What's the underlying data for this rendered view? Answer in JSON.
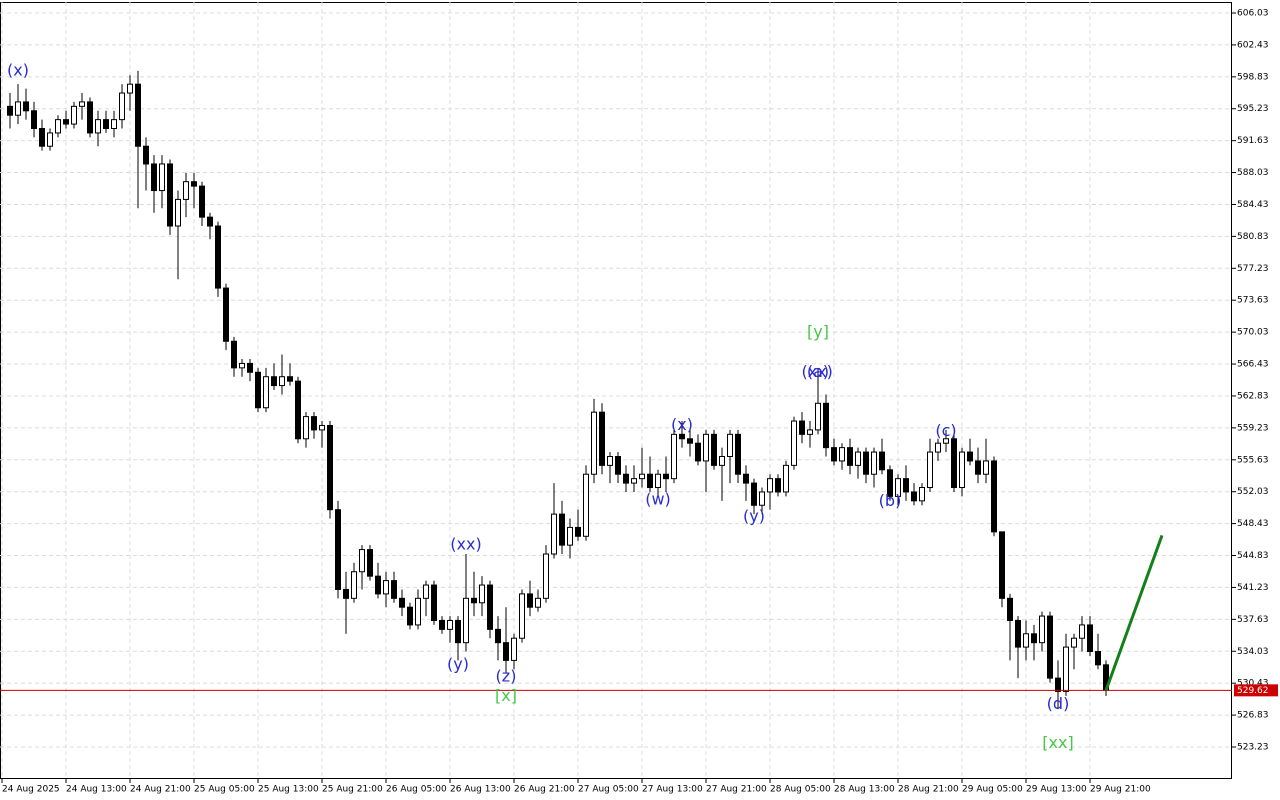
{
  "chart_data": {
    "type": "candlestick",
    "x": [
      1,
      2,
      3,
      4,
      5,
      6,
      7,
      8,
      9,
      10,
      11,
      12,
      13,
      14,
      15,
      16,
      17,
      18,
      19,
      20,
      21,
      22,
      23,
      24,
      25,
      26,
      27,
      28,
      29,
      30,
      31,
      32,
      33,
      34,
      35,
      36,
      37,
      38,
      39,
      40,
      41,
      42,
      43,
      44,
      45,
      46,
      47,
      48,
      49,
      50,
      51,
      52,
      53,
      54,
      55,
      56,
      57,
      58,
      59,
      60,
      61,
      62,
      63,
      64,
      65,
      66,
      67,
      68,
      69,
      70,
      71,
      72,
      73,
      74,
      75,
      76,
      77,
      78,
      79,
      80,
      81,
      82,
      83,
      84,
      85,
      86,
      87,
      88,
      89,
      90,
      91,
      92,
      93,
      94,
      95,
      96,
      97,
      98,
      99,
      100,
      101,
      102,
      103,
      104,
      105,
      106,
      107,
      108,
      109,
      110,
      111,
      112,
      113,
      114,
      115,
      116,
      117,
      118,
      119,
      120,
      121,
      122,
      123,
      124,
      125,
      126,
      127,
      128,
      129,
      130,
      131,
      132,
      133,
      134,
      135,
      136,
      137,
      138
    ],
    "open": [
      595.5,
      594.5,
      596,
      595,
      593,
      591,
      592.5,
      594,
      593.5,
      595.5,
      596,
      592.5,
      594,
      593,
      594,
      597,
      598,
      591,
      589,
      586,
      589,
      582,
      585,
      587,
      586.5,
      583,
      582,
      575,
      569,
      566,
      566.5,
      565.5,
      561.5,
      565,
      564,
      565,
      564.5,
      558,
      560.5,
      559,
      559.5,
      550,
      541,
      540,
      543,
      545.5,
      542.5,
      540.5,
      542,
      540,
      539,
      537,
      540,
      541.5,
      537.5,
      536.5,
      537.5,
      535,
      540,
      539.5,
      541.5,
      536.5,
      535,
      533,
      535.5,
      540.5,
      539,
      540,
      545,
      549.5,
      546,
      548,
      547,
      554,
      561,
      555,
      556,
      554,
      553,
      553.5,
      554,
      552.5,
      554,
      553.5,
      558.5,
      558,
      557.5,
      555.5,
      558.5,
      555,
      556,
      558.5,
      554,
      553,
      550.5,
      552,
      553.5,
      552,
      555,
      560,
      558.5,
      559,
      562,
      557,
      555.5,
      557,
      555,
      556.5,
      554,
      556.5,
      554.5,
      551.5,
      553.5,
      552,
      551,
      552.5,
      556.5,
      557.5,
      558,
      552.5,
      556.5,
      555.5,
      554,
      555.5,
      547.5,
      540,
      537.5,
      534.5,
      536,
      535,
      538,
      531,
      529.5,
      534.5,
      535.5,
      537,
      534,
      532.5
    ],
    "high": [
      597,
      598,
      597.5,
      596,
      594,
      593,
      594.5,
      595,
      596,
      597,
      596.5,
      595,
      595,
      595,
      598,
      599,
      599.5,
      592,
      590,
      590,
      589.5,
      586,
      588,
      588,
      587,
      583.5,
      582.5,
      575.5,
      569.5,
      567,
      567,
      566,
      566,
      566.5,
      567.5,
      566.5,
      565,
      561,
      561,
      560,
      560,
      551,
      543,
      544,
      546,
      546,
      544,
      543,
      543,
      541,
      539.5,
      541,
      542,
      542,
      538,
      538,
      538,
      545,
      543,
      542.5,
      542,
      538,
      539,
      536,
      541,
      542,
      541,
      546,
      553,
      551,
      549,
      550,
      555,
      562.5,
      562,
      556.5,
      556.5,
      555,
      555,
      557,
      556,
      554.5,
      556,
      559,
      560,
      559,
      558.5,
      559,
      559,
      557,
      559,
      559,
      555,
      553.5,
      552.5,
      554,
      554,
      555.5,
      560.5,
      561,
      560,
      566,
      563,
      558,
      557.5,
      558,
      557,
      557,
      557,
      558,
      555,
      554,
      555,
      553,
      553,
      558,
      558,
      559,
      558.5,
      557,
      558,
      557,
      558,
      556,
      547.5,
      540.5,
      538,
      537.5,
      537,
      538.5,
      538.5,
      533,
      536,
      536,
      538,
      538,
      536,
      533
    ],
    "low": [
      593,
      593.5,
      594,
      592,
      590.5,
      590.5,
      592,
      593,
      593,
      594,
      592,
      591,
      592.5,
      592,
      593,
      595,
      584,
      586,
      583.5,
      584,
      581,
      576,
      583,
      584,
      582,
      580.5,
      574,
      568,
      565,
      565,
      564.5,
      561,
      561,
      563.5,
      563,
      564,
      557.5,
      557,
      558,
      557,
      549,
      540,
      536,
      539.5,
      541,
      542,
      540,
      539,
      539.5,
      538,
      536.5,
      536.5,
      538,
      537,
      536,
      535,
      533,
      534,
      538,
      538,
      535.5,
      533,
      531.5,
      532,
      535,
      538,
      538.5,
      539.5,
      544.5,
      545,
      544.5,
      546.5,
      546.5,
      553,
      554,
      553,
      553,
      552,
      552,
      552.5,
      552,
      551.5,
      552,
      553,
      557,
      556,
      555,
      552,
      554.5,
      551,
      553,
      553,
      551,
      549.5,
      549.5,
      550,
      551.5,
      551.5,
      554.5,
      557.5,
      557,
      558.5,
      556,
      555,
      554.5,
      554,
      553.5,
      553,
      552.5,
      554,
      551,
      550.5,
      551,
      550.5,
      550.5,
      552,
      555.5,
      556.5,
      552,
      551.5,
      555,
      553,
      553,
      547,
      539,
      533,
      531,
      533,
      533,
      534,
      530.5,
      527.5,
      529,
      532,
      534,
      533.5,
      532,
      529
    ],
    "close": [
      594.5,
      596,
      595,
      593,
      591,
      592.5,
      594,
      593.5,
      595.5,
      596,
      592.5,
      594,
      593,
      594,
      597,
      598,
      591,
      589,
      586,
      589,
      582,
      585,
      587,
      586.5,
      583,
      582,
      575,
      569,
      566,
      566.5,
      565.5,
      561.5,
      565,
      564,
      565,
      564.5,
      558,
      560.5,
      559,
      559.5,
      550,
      541,
      540,
      543,
      545.5,
      542.5,
      540.5,
      542,
      540,
      539,
      537,
      540,
      541.5,
      537.5,
      536.5,
      537.5,
      535,
      540,
      539.5,
      541.5,
      536.5,
      535,
      533,
      535.5,
      540.5,
      539,
      540,
      545,
      549.5,
      546,
      548,
      547,
      554,
      561,
      555,
      556,
      554,
      553,
      553.5,
      554,
      552.5,
      554,
      553.5,
      558.5,
      558,
      557.5,
      555.5,
      558.5,
      555,
      556,
      558.5,
      554,
      553,
      550.5,
      552,
      553.5,
      552,
      555,
      560,
      558.5,
      559,
      562,
      557,
      555.5,
      557,
      555,
      556.5,
      554,
      556.5,
      554.5,
      551.5,
      553.5,
      552,
      551,
      552.5,
      556.5,
      557.5,
      558,
      552.5,
      556.5,
      555.5,
      554,
      555.5,
      547.5,
      540,
      537.5,
      534.5,
      536,
      535,
      538,
      531,
      529.5,
      534.5,
      535.5,
      537,
      534,
      532.5,
      529.62
    ],
    "up_color": "#ffffff",
    "down_color": "#000000",
    "wick_color": "#000000",
    "last_price": 529.62,
    "last_price_color": "#cc0000",
    "projection": {
      "x": [
        138,
        145
      ],
      "values": [
        529.62,
        547.1
      ],
      "color": "#14801a"
    },
    "xlim": [
      -0.25,
      153.75
    ],
    "ylim": [
      519.62,
      607.27
    ],
    "yticks": [
      606.03,
      602.43,
      598.83,
      595.23,
      591.63,
      588.03,
      584.43,
      580.83,
      577.23,
      573.63,
      570.03,
      566.43,
      562.83,
      559.23,
      555.63,
      552.03,
      548.43,
      544.83,
      541.23,
      537.63,
      534.03,
      530.43,
      526.83,
      523.23
    ],
    "xticks": [
      {
        "value": 0,
        "label": "24 Aug 2025"
      },
      {
        "value": 8,
        "label": "24 Aug 13:00"
      },
      {
        "value": 16,
        "label": "24 Aug 21:00"
      },
      {
        "value": 24,
        "label": "25 Aug 05:00"
      },
      {
        "value": 32,
        "label": "25 Aug 13:00"
      },
      {
        "value": 40,
        "label": "25 Aug 21:00"
      },
      {
        "value": 48,
        "label": "26 Aug 05:00"
      },
      {
        "value": 56,
        "label": "26 Aug 13:00"
      },
      {
        "value": 64,
        "label": "26 Aug 21:00"
      },
      {
        "value": 72,
        "label": "27 Aug 05:00"
      },
      {
        "value": 80,
        "label": "27 Aug 13:00"
      },
      {
        "value": 88,
        "label": "27 Aug 21:00"
      },
      {
        "value": 96,
        "label": "28 Aug 05:00"
      },
      {
        "value": 104,
        "label": "28 Aug 13:00"
      },
      {
        "value": 112,
        "label": "28 Aug 21:00"
      },
      {
        "value": 120,
        "label": "29 Aug 05:00"
      },
      {
        "value": 128,
        "label": "29 Aug 13:00"
      },
      {
        "value": 136,
        "label": "29 Aug 21:00"
      }
    ],
    "grid": true,
    "annotations": [
      {
        "text": "(x)",
        "x": 2,
        "y": 599.5,
        "color": "#2a2ad6"
      },
      {
        "text": "(xx)",
        "x": 58,
        "y": 546.0,
        "color": "#2a2ad6"
      },
      {
        "text": "(y)",
        "x": 57,
        "y": 532.5,
        "color": "#2a2ad6"
      },
      {
        "text": "(z)",
        "x": 63,
        "y": 531.1,
        "color": "#2a2ad6"
      },
      {
        "text": "[x]",
        "x": 63,
        "y": 528.9,
        "color": "#46c846"
      },
      {
        "text": "(w)",
        "x": 82,
        "y": 551.1,
        "color": "#2a2ad6"
      },
      {
        "text": "(x)",
        "x": 85,
        "y": 559.5,
        "color": "#2a2ad6"
      },
      {
        "text": "(y)",
        "x": 94,
        "y": 549.2,
        "color": "#2a2ad6"
      },
      {
        "text": "[y]",
        "x": 102,
        "y": 570.0,
        "color": "#46c846"
      },
      {
        "text": "(xx)",
        "x": 101.9,
        "y": 565.5,
        "color": "#2a2ad6"
      },
      {
        "text": "(a)",
        "x": 102,
        "y": 565.5,
        "color": "#2a2ad6"
      },
      {
        "text": "(b)",
        "x": 111,
        "y": 550.9,
        "color": "#2a2ad6"
      },
      {
        "text": "(c)",
        "x": 118,
        "y": 558.8,
        "color": "#2a2ad6"
      },
      {
        "text": "(d)",
        "x": 132,
        "y": 528.0,
        "color": "#2a2ad6"
      },
      {
        "text": "[xx]",
        "x": 132,
        "y": 523.6,
        "color": "#46c846"
      }
    ]
  }
}
